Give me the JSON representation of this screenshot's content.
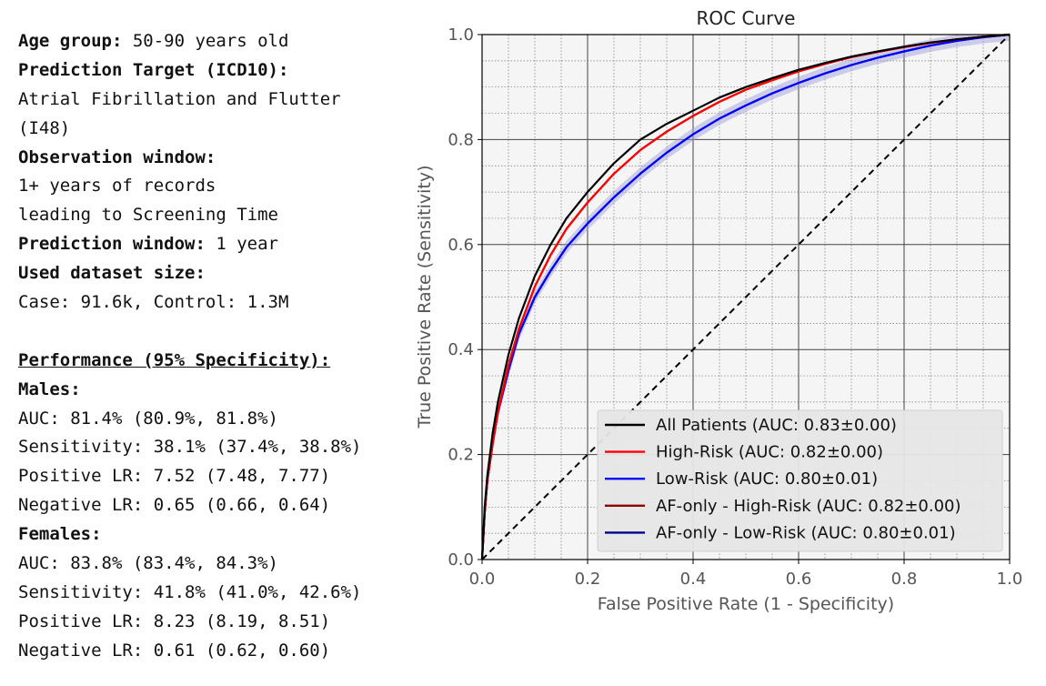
{
  "info": {
    "age_label": "Age group:",
    "age_value": "50-90 years old",
    "target_label": "Prediction Target (ICD10):",
    "target_value_1": "Atrial Fibrillation and Flutter",
    "target_value_2": "(I48)",
    "observation_label": "Observation window:",
    "observation_value_1": "1+ years of records",
    "observation_value_2": "leading to Screening Time",
    "prediction_label": "Prediction window:",
    "prediction_value": "1 year",
    "dataset_label": "Used dataset size:",
    "dataset_value": "Case: 91.6k, Control: 1.3M",
    "performance_header": "Performance (95% Specificity):",
    "males_label": "Males:",
    "males": [
      "AUC: 81.4% (80.9%, 81.8%)",
      "Sensitivity: 38.1% (37.4%, 38.8%)",
      "Positive LR: 7.52 (7.48, 7.77)",
      "Negative LR: 0.65 (0.66, 0.64)"
    ],
    "females_label": "Females:",
    "females": [
      "AUC: 83.8% (83.4%, 84.3%)",
      "Sensitivity: 41.8% (41.0%, 42.6%)",
      "Positive LR: 8.23 (8.19, 8.51)",
      "Negative LR: 0.61 (0.62, 0.60)"
    ]
  },
  "chart_data": {
    "type": "line",
    "title": "ROC Curve",
    "xlabel": "False Positive Rate (1 - Specificity)",
    "ylabel": "True Positive Rate (Sensitivity)",
    "xlim": [
      0,
      1
    ],
    "ylim": [
      0,
      1
    ],
    "xticks": [
      "0.0",
      "0.2",
      "0.4",
      "0.6",
      "0.8",
      "1.0"
    ],
    "yticks": [
      "0.0",
      "0.2",
      "0.4",
      "0.6",
      "0.8",
      "1.0"
    ],
    "grid": true,
    "legend_position": "bottom-right",
    "reference_line": {
      "name": "chance",
      "x": [
        0,
        1
      ],
      "y": [
        0,
        1
      ],
      "color": "#000000",
      "style": "dashed"
    },
    "series": [
      {
        "name": "All Patients (AUC: 0.83±0.00)",
        "color": "#000000",
        "x": [
          0,
          0.005,
          0.01,
          0.02,
          0.03,
          0.05,
          0.07,
          0.1,
          0.13,
          0.16,
          0.2,
          0.25,
          0.3,
          0.35,
          0.4,
          0.45,
          0.5,
          0.55,
          0.6,
          0.65,
          0.7,
          0.75,
          0.8,
          0.85,
          0.9,
          0.95,
          1.0
        ],
        "y": [
          0,
          0.1,
          0.16,
          0.24,
          0.3,
          0.39,
          0.46,
          0.54,
          0.6,
          0.65,
          0.7,
          0.755,
          0.8,
          0.83,
          0.855,
          0.88,
          0.9,
          0.917,
          0.933,
          0.946,
          0.958,
          0.968,
          0.977,
          0.985,
          0.991,
          0.996,
          1.0
        ]
      },
      {
        "name": "High-Risk (AUC: 0.82±0.00)",
        "color": "#ff0000",
        "x": [
          0,
          0.005,
          0.01,
          0.02,
          0.03,
          0.05,
          0.07,
          0.1,
          0.13,
          0.16,
          0.2,
          0.25,
          0.3,
          0.35,
          0.4,
          0.45,
          0.5,
          0.55,
          0.6,
          0.65,
          0.7,
          0.75,
          0.8,
          0.85,
          0.9,
          0.95,
          1.0
        ],
        "y": [
          0,
          0.09,
          0.15,
          0.22,
          0.28,
          0.37,
          0.44,
          0.52,
          0.58,
          0.63,
          0.68,
          0.735,
          0.78,
          0.815,
          0.845,
          0.872,
          0.895,
          0.913,
          0.93,
          0.944,
          0.957,
          0.967,
          0.976,
          0.984,
          0.991,
          0.996,
          1.0
        ]
      },
      {
        "name": "Low-Risk (AUC: 0.80±0.01)",
        "color": "#0000ff",
        "x": [
          0,
          0.005,
          0.01,
          0.02,
          0.03,
          0.05,
          0.07,
          0.1,
          0.13,
          0.16,
          0.2,
          0.25,
          0.3,
          0.35,
          0.4,
          0.45,
          0.5,
          0.55,
          0.6,
          0.65,
          0.7,
          0.75,
          0.8,
          0.85,
          0.9,
          0.95,
          1.0
        ],
        "y": [
          0,
          0.09,
          0.15,
          0.22,
          0.28,
          0.36,
          0.43,
          0.5,
          0.55,
          0.595,
          0.64,
          0.69,
          0.735,
          0.775,
          0.81,
          0.84,
          0.865,
          0.888,
          0.908,
          0.926,
          0.942,
          0.956,
          0.968,
          0.979,
          0.988,
          0.995,
          1.0
        ]
      },
      {
        "name": "AF-only - High-Risk (AUC: 0.82±0.00)",
        "color": "#8b0000",
        "x": [
          0,
          0.005,
          0.01,
          0.02,
          0.03,
          0.05,
          0.07,
          0.1,
          0.13,
          0.16,
          0.2,
          0.25,
          0.3,
          0.35,
          0.4,
          0.45,
          0.5,
          0.55,
          0.6,
          0.65,
          0.7,
          0.75,
          0.8,
          0.85,
          0.9,
          0.95,
          1.0
        ],
        "y": [
          0,
          0.09,
          0.15,
          0.22,
          0.28,
          0.37,
          0.44,
          0.52,
          0.58,
          0.63,
          0.68,
          0.735,
          0.78,
          0.815,
          0.845,
          0.872,
          0.895,
          0.913,
          0.93,
          0.944,
          0.957,
          0.967,
          0.976,
          0.984,
          0.991,
          0.996,
          1.0
        ]
      },
      {
        "name": "AF-only - Low-Risk (AUC: 0.80±0.01)",
        "color": "#00008b",
        "x": [
          0,
          0.005,
          0.01,
          0.02,
          0.03,
          0.05,
          0.07,
          0.1,
          0.13,
          0.16,
          0.2,
          0.25,
          0.3,
          0.35,
          0.4,
          0.45,
          0.5,
          0.55,
          0.6,
          0.65,
          0.7,
          0.75,
          0.8,
          0.85,
          0.9,
          0.95,
          1.0
        ],
        "y": [
          0,
          0.09,
          0.15,
          0.22,
          0.28,
          0.36,
          0.43,
          0.5,
          0.55,
          0.595,
          0.64,
          0.69,
          0.735,
          0.775,
          0.81,
          0.84,
          0.865,
          0.888,
          0.908,
          0.926,
          0.942,
          0.956,
          0.968,
          0.979,
          0.988,
          0.995,
          1.0
        ]
      }
    ]
  }
}
